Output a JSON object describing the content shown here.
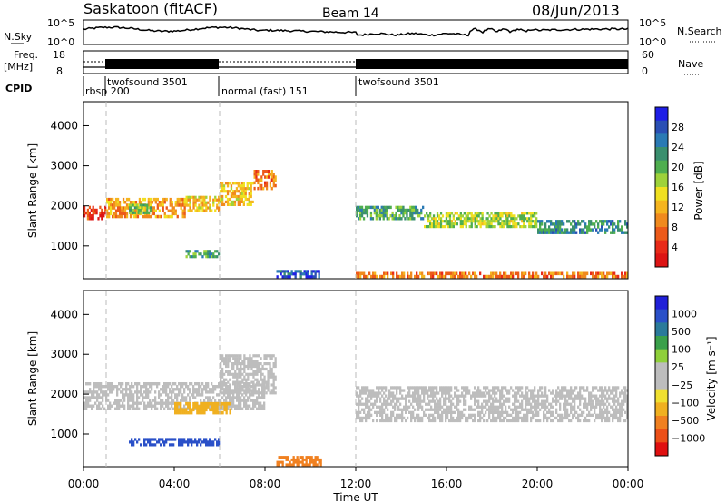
{
  "header": {
    "title": "Saskatoon (fitACF)",
    "beam": "Beam 14",
    "date": "08/Jun/2013"
  },
  "noise_panel": {
    "left_label": "N.Sky",
    "right_label": "N.Search",
    "left_ticks": [
      "10^5",
      "10^0"
    ],
    "right_ticks": [
      "10^5",
      "10^0"
    ]
  },
  "freq_panel": {
    "left_label_1": "Freq.",
    "left_label_2": "[MHz]",
    "right_label": "Nave",
    "left_ticks": [
      "18",
      "8"
    ],
    "right_ticks": [
      "60",
      "0"
    ]
  },
  "cpid": {
    "label": "CPID",
    "segments": [
      {
        "name": "rbsp",
        "id": "200",
        "start": 0.0
      },
      {
        "name": "twofsound",
        "id": "3501",
        "start": 1.0
      },
      {
        "name": "normal (fast)",
        "id": "151",
        "start": 6.0
      },
      {
        "name": "twofsound",
        "id": "3501",
        "start": 12.0
      }
    ]
  },
  "x_axis": {
    "label": "Time UT",
    "ticks": [
      "00:00",
      "04:00",
      "08:00",
      "12:00",
      "16:00",
      "20:00",
      "00:00"
    ]
  },
  "power_panel": {
    "ylabel": "Slant Range [km]",
    "yticks": [
      "1000",
      "2000",
      "3000",
      "4000"
    ],
    "cbar_label": "Power [dB]",
    "cbar_ticks": [
      "4",
      "8",
      "12",
      "16",
      "20",
      "24",
      "28"
    ],
    "cbar_colors": [
      "#1e1ee6",
      "#2a4fb4",
      "#2a7ab4",
      "#3a8f6e",
      "#4fae4f",
      "#9ed23a",
      "#f0e020",
      "#f5b51f",
      "#f08a1e",
      "#ec5a1a",
      "#e82a18",
      "#dd1414"
    ]
  },
  "velocity_panel": {
    "ylabel": "Slant Range [km]",
    "yticks": [
      "1000",
      "2000",
      "3000",
      "4000"
    ],
    "cbar_label": "Velocity  [m s⁻¹]",
    "cbar_ticks": [
      "1000",
      "500",
      "100",
      "25",
      "−25",
      "−100",
      "−500",
      "−1000"
    ],
    "cbar_colors": [
      "#2020d8",
      "#2a50c8",
      "#2a7a9a",
      "#3aa04a",
      "#8fd03a",
      "#bdbdbd",
      "#bdbdbd",
      "#f0e030",
      "#f0b020",
      "#f08020",
      "#ec5018",
      "#e01010"
    ]
  },
  "chart_data": {
    "type": "heatmap",
    "x_range_hours": [
      0,
      24
    ],
    "y_range_km": [
      180,
      4600
    ],
    "power_regions": [
      {
        "t0": 0.0,
        "t1": 1.0,
        "r0": 1650,
        "r1": 2000,
        "level": 4
      },
      {
        "t0": 1.0,
        "t1": 4.5,
        "r0": 1700,
        "r1": 2200,
        "level": 10
      },
      {
        "t0": 2.0,
        "t1": 3.0,
        "r0": 1800,
        "r1": 2050,
        "level": 18
      },
      {
        "t0": 4.5,
        "t1": 6.0,
        "r0": 1850,
        "r1": 2250,
        "level": 12
      },
      {
        "t0": 6.0,
        "t1": 7.5,
        "r0": 2000,
        "r1": 2600,
        "level": 12
      },
      {
        "t0": 7.5,
        "t1": 8.5,
        "r0": 2400,
        "r1": 2900,
        "level": 8
      },
      {
        "t0": 4.5,
        "t1": 6.0,
        "r0": 700,
        "r1": 900,
        "level": 20
      },
      {
        "t0": 8.5,
        "t1": 10.5,
        "r0": 200,
        "r1": 400,
        "level": 26
      },
      {
        "t0": 12.0,
        "t1": 15.0,
        "r0": 1650,
        "r1": 2000,
        "level": 20
      },
      {
        "t0": 15.0,
        "t1": 20.0,
        "r0": 1450,
        "r1": 1850,
        "level": 16
      },
      {
        "t0": 20.0,
        "t1": 24.0,
        "r0": 1300,
        "r1": 1650,
        "level": 22
      },
      {
        "t0": 12.0,
        "t1": 24.0,
        "r0": 200,
        "r1": 350,
        "level": 8
      }
    ],
    "velocity_regions": [
      {
        "t0": 0.0,
        "t1": 8.0,
        "r0": 1600,
        "r1": 2300,
        "class": "25"
      },
      {
        "t0": 6.0,
        "t1": 8.5,
        "r0": 2000,
        "r1": 3000,
        "class": "25"
      },
      {
        "t0": 12.0,
        "t1": 24.0,
        "r0": 1300,
        "r1": 2200,
        "class": "25"
      },
      {
        "t0": 2.0,
        "t1": 6.0,
        "r0": 700,
        "r1": 900,
        "class": "500"
      },
      {
        "t0": 8.5,
        "t1": 10.5,
        "r0": 200,
        "r1": 450,
        "class": "-500"
      },
      {
        "t0": 4.0,
        "t1": 6.5,
        "r0": 1500,
        "r1": 1800,
        "class": "-100"
      }
    ]
  }
}
